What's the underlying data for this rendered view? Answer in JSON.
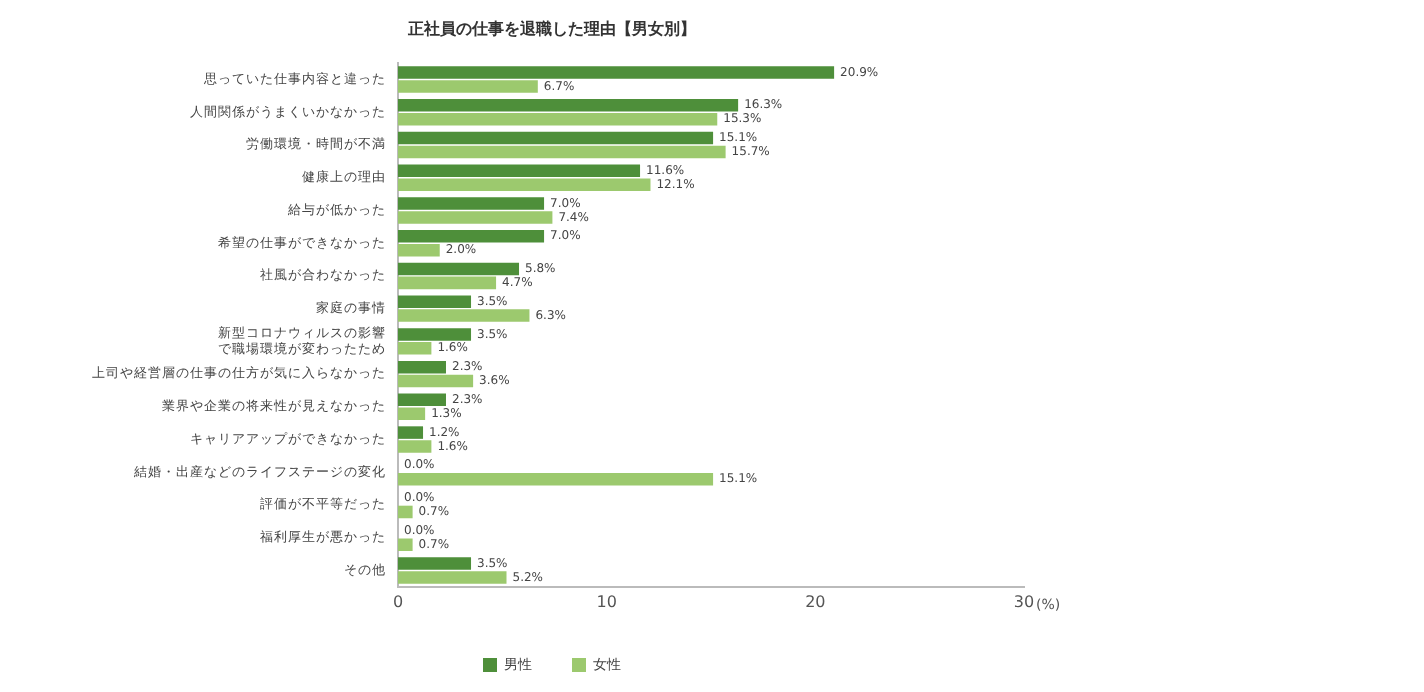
{
  "chart_data": {
    "type": "bar",
    "orientation": "horizontal",
    "title": "正社員の仕事を退職した理由【男女別】",
    "xlabel": "(%)",
    "categories": [
      "思っていた仕事内容と違った",
      "人間関係がうまくいかなかった",
      "労働環境・時間が不満",
      "健康上の理由",
      "給与が低かった",
      "希望の仕事ができなかった",
      "社風が合わなかった",
      "家庭の事情",
      "新型コロナウィルスの影響で職場環境が変わったため",
      "上司や経営層の仕事の仕方が気に入らなかった",
      "業界や企業の将来性が見えなかった",
      "キャリアアップができなかった",
      "結婚・出産などのライフステージの変化",
      "評価が不平等だった",
      "福利厚生が悪かった",
      "その他"
    ],
    "series": [
      {
        "name": "男性",
        "color": "#4e8f3a",
        "values": [
          20.9,
          16.3,
          15.1,
          11.6,
          7.0,
          7.0,
          5.8,
          3.5,
          3.5,
          2.3,
          2.3,
          1.2,
          0.0,
          0.0,
          0.0,
          3.5
        ],
        "value_labels": [
          "20.9%",
          "16.3%",
          "15.1%",
          "11.6%",
          "7.0%",
          "7.0%",
          "5.8%",
          "3.5%",
          "3.5%",
          "2.3%",
          "2.3%",
          "1.2%",
          "0.0%",
          "0.0%",
          "0.0%",
          "3.5%"
        ]
      },
      {
        "name": "女性",
        "color": "#9cc96e",
        "values": [
          6.7,
          15.3,
          15.7,
          12.1,
          7.4,
          2.0,
          4.7,
          6.3,
          1.6,
          3.6,
          1.3,
          1.6,
          15.1,
          0.7,
          0.7,
          5.2
        ],
        "value_labels": [
          "6.7%",
          "15.3%",
          "15.7%",
          "12.1%",
          "7.4%",
          "2.0%",
          "4.7%",
          "6.3%",
          "1.6%",
          "3.6%",
          "1.3%",
          "1.6%",
          "15.1%",
          "0.7%",
          "0.7%",
          "5.2%"
        ]
      }
    ],
    "xlim": [
      0,
      30
    ],
    "xticks": [
      0,
      10,
      20,
      30
    ],
    "grid": false,
    "legend": "bottom"
  }
}
